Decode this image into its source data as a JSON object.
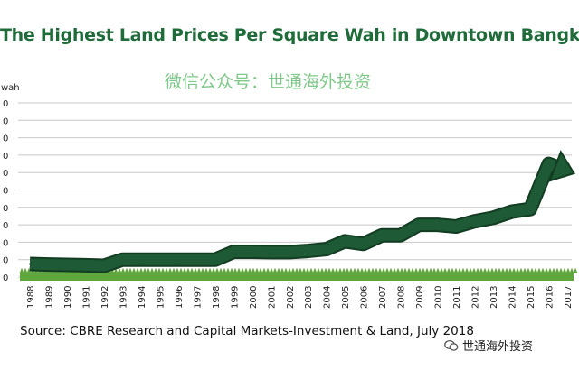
{
  "chart_data": {
    "type": "line",
    "title": "The Highest Land Prices Per Square Wah in Downtown Bangkok",
    "ylabel": "wah",
    "ylim": [
      0,
      1000
    ],
    "grid": true,
    "categories": [
      "1988",
      "1989",
      "1990",
      "1991",
      "1992",
      "1993",
      "1994",
      "1995",
      "1996",
      "1997",
      "1998",
      "1999",
      "2000",
      "2001",
      "2002",
      "2003",
      "2004",
      "2005",
      "2006",
      "2007",
      "2008",
      "2009",
      "2010",
      "2011",
      "2012",
      "2013",
      "2014",
      "2015",
      "2016",
      "2017"
    ],
    "series": [
      {
        "values": [
          75,
          72,
          70,
          68,
          65,
          100,
          100,
          100,
          100,
          100,
          100,
          145,
          145,
          143,
          143,
          150,
          160,
          205,
          190,
          240,
          240,
          300,
          300,
          290,
          320,
          340,
          375,
          390,
          650,
          610
        ]
      }
    ],
    "colors": {
      "line": "#1e5a35",
      "line_edge": "#123d22",
      "grass": "#5fa63c",
      "grid": "#c8c8c8",
      "title": "#1f6b3a"
    }
  },
  "watermark": "微信公众号：世通海外投资",
  "source_note": "Source: CBRE Research and Capital Markets-Investment & Land, July 2018",
  "channel_badge": {
    "name": "世通海外投资",
    "icon": "wechat-channel-icon"
  }
}
